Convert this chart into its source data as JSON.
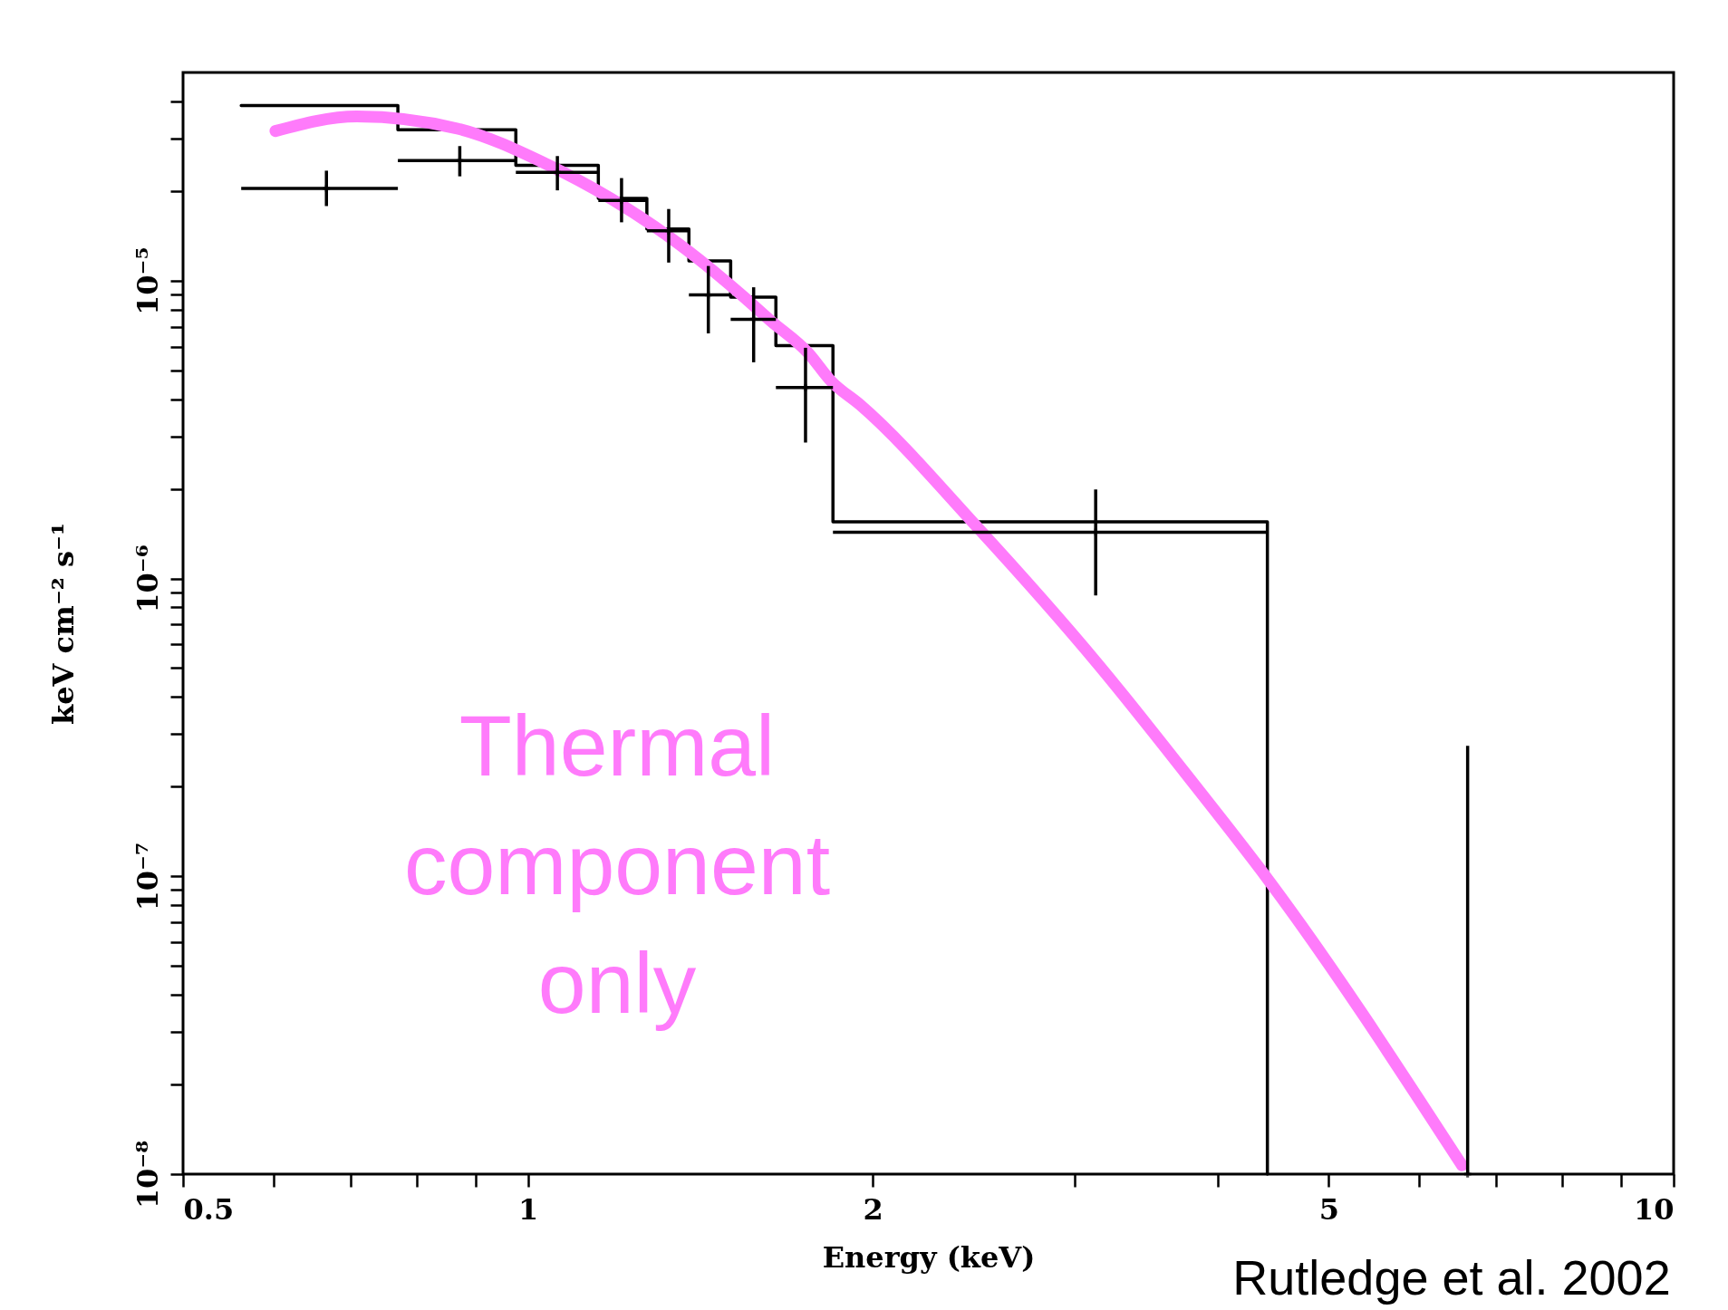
{
  "chart_data": {
    "type": "line",
    "xlabel": "Energy (keV)",
    "ylabel": "keV cm⁻² s⁻¹",
    "log": "xy",
    "grid": false,
    "xlim": [
      0.5,
      10
    ],
    "ylim": [
      1e-08,
      5e-05
    ],
    "xticks": [
      0.5,
      {
        "value": 0.6,
        "label": null
      },
      {
        "value": 0.7,
        "label": null
      },
      {
        "value": 0.8,
        "label": null
      },
      {
        "value": 0.9,
        "label": null
      },
      1,
      2,
      {
        "value": 3,
        "label": null
      },
      {
        "value": 4,
        "label": null
      },
      5,
      {
        "value": 6,
        "label": null
      },
      {
        "value": 7,
        "label": null
      },
      {
        "value": 8,
        "label": null
      },
      {
        "value": 9,
        "label": null
      },
      10
    ],
    "yticks": [
      {
        "value": 1e-08,
        "label": "10⁻⁸"
      },
      {
        "value": 2e-08,
        "label": null
      },
      {
        "value": 3e-08,
        "label": null
      },
      {
        "value": 4e-08,
        "label": null
      },
      {
        "value": 5e-08,
        "label": null
      },
      {
        "value": 6e-08,
        "label": null
      },
      {
        "value": 7e-08,
        "label": null
      },
      {
        "value": 8e-08,
        "label": null
      },
      {
        "value": 9e-08,
        "label": null
      },
      {
        "value": 1e-07,
        "label": "10⁻⁷"
      },
      {
        "value": 2e-07,
        "label": null
      },
      {
        "value": 3e-07,
        "label": null
      },
      {
        "value": 4e-07,
        "label": null
      },
      {
        "value": 5e-07,
        "label": null
      },
      {
        "value": 6e-07,
        "label": null
      },
      {
        "value": 7e-07,
        "label": null
      },
      {
        "value": 8e-07,
        "label": null
      },
      {
        "value": 9e-07,
        "label": null
      },
      {
        "value": 1e-06,
        "label": "10⁻⁶"
      },
      {
        "value": 2e-06,
        "label": null
      },
      {
        "value": 3e-06,
        "label": null
      },
      {
        "value": 4e-06,
        "label": null
      },
      {
        "value": 5e-06,
        "label": null
      },
      {
        "value": 6e-06,
        "label": null
      },
      {
        "value": 7e-06,
        "label": null
      },
      {
        "value": 8e-06,
        "label": null
      },
      {
        "value": 9e-06,
        "label": null
      },
      {
        "value": 1e-05,
        "label": "10⁻⁵"
      },
      {
        "value": 2e-05,
        "label": null
      },
      {
        "value": 3e-05,
        "label": null
      },
      {
        "value": 4e-05,
        "label": null
      }
    ],
    "annotations": [
      "Thermal component only",
      "Rutledge et al. 2002"
    ],
    "series": [
      {
        "type": "scatter",
        "marker": "cross",
        "color": "#000000",
        "x": [
          0.667,
          0.872,
          1.061,
          1.207,
          1.327,
          1.437,
          1.574,
          1.747,
          3.13,
          6.61
        ],
        "values": [
          2.04e-05,
          2.53e-05,
          2.31e-05,
          1.86e-05,
          1.47e-05,
          8.95e-06,
          7.42e-06,
          4.38e-06,
          1.43e-06,
          1e-08
        ],
        "xerrors": [
          [
            0.562,
            0.77
          ],
          [
            0.77,
            0.976
          ],
          [
            0.976,
            1.152
          ],
          [
            1.152,
            1.27
          ],
          [
            1.27,
            1.382
          ],
          [
            1.382,
            1.503
          ],
          [
            1.503,
            1.646
          ],
          [
            1.646,
            1.846
          ],
          [
            1.846,
            4.42
          ],
          null
        ],
        "errors": [
          [
            1.78e-05,
            2.34e-05
          ],
          [
            2.24e-05,
            2.83e-05
          ],
          [
            2.01e-05,
            2.62e-05
          ],
          [
            1.57e-05,
            2.21e-05
          ],
          [
            1.15e-05,
            1.74e-05
          ],
          [
            6.65e-06,
            1.12e-05
          ],
          [
            5.32e-06,
            9.5e-06
          ],
          [
            2.86e-06,
            5.95e-06
          ],
          [
            8.77e-07,
            1.99e-06
          ],
          [
            1e-08,
            2.74e-07
          ]
        ]
      },
      {
        "type": "step",
        "line_style": "solid",
        "color": "#000000",
        "x": [
          0.562,
          0.77,
          0.976,
          1.152,
          1.27,
          1.382,
          1.503,
          1.646,
          1.846,
          4.42
        ],
        "values": [
          3.87e-05,
          3.21e-05,
          2.44e-05,
          1.89e-05,
          1.49e-05,
          1.165e-05,
          8.8e-06,
          6.05e-06,
          1.55e-06,
          1e-08
        ]
      },
      {
        "line_style": "solid",
        "color": "#ff7bfb",
        "x": [
          0.602,
          0.709,
          0.868,
          1.036,
          1.183,
          1.35,
          1.54,
          1.627,
          1.758,
          1.838,
          1.951,
          2.462,
          3.148,
          3.825,
          4.418,
          6.535
        ],
        "values": [
          3.18e-05,
          3.56e-05,
          3.24e-05,
          2.47e-05,
          1.88e-05,
          1.34e-05,
          8.88e-06,
          7.36e-06,
          5.7e-06,
          4.61e-06,
          3.82e-06,
          1.5e-06,
          5.13e-07,
          2.01e-07,
          9.84e-08,
          1.07e-08
        ]
      }
    ]
  }
}
